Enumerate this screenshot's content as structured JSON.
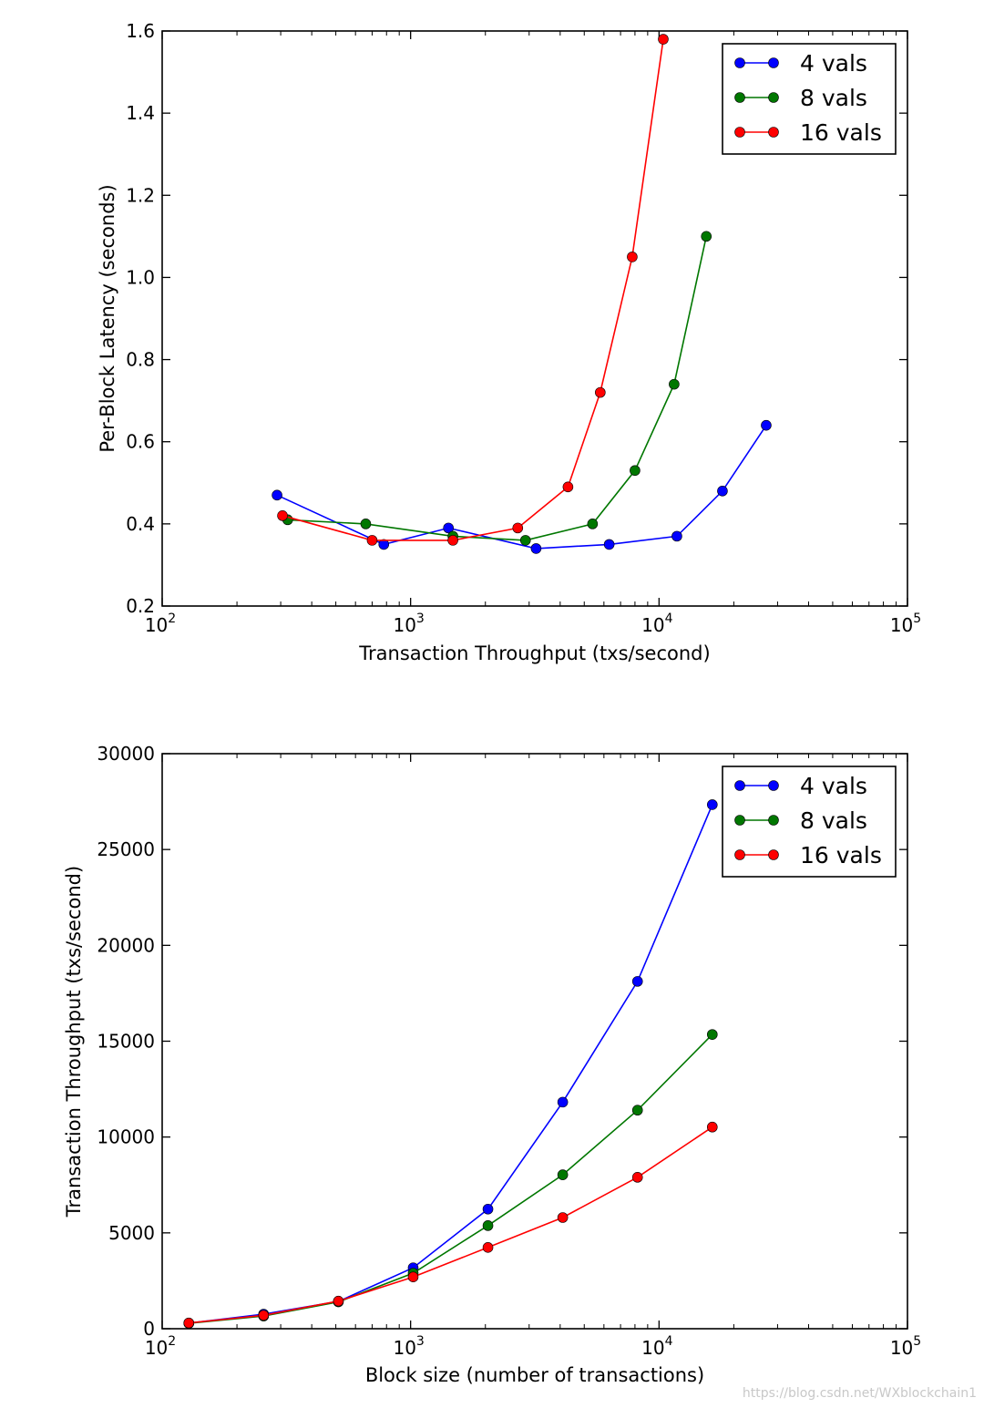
{
  "chart_data": [
    {
      "type": "line",
      "title": "",
      "xlabel": "Transaction Throughput (txs/second)",
      "ylabel": "Per-Block Latency (seconds)",
      "xscale": "log",
      "xlim": [
        100,
        100000
      ],
      "ylim": [
        0.2,
        1.6
      ],
      "xticks": [
        {
          "base": "10",
          "exp": "2"
        },
        {
          "base": "10",
          "exp": "3"
        },
        {
          "base": "10",
          "exp": "4"
        },
        {
          "base": "10",
          "exp": "5"
        }
      ],
      "yticks": [
        "0.2",
        "0.4",
        "0.6",
        "0.8",
        "1.0",
        "1.2",
        "1.4",
        "1.6"
      ],
      "legend_position": "top-right",
      "grid": false,
      "series": [
        {
          "name": "4 vals",
          "color": "#0000ff",
          "points": [
            [
              290,
              0.47
            ],
            [
              780,
              0.35
            ],
            [
              1420,
              0.39
            ],
            [
              3200,
              0.34
            ],
            [
              6300,
              0.35
            ],
            [
              11800,
              0.37
            ],
            [
              18000,
              0.48
            ],
            [
              27000,
              0.64
            ]
          ]
        },
        {
          "name": "8 vals",
          "color": "#007700",
          "points": [
            [
              320,
              0.41
            ],
            [
              660,
              0.4
            ],
            [
              1480,
              0.37
            ],
            [
              2900,
              0.36
            ],
            [
              5400,
              0.4
            ],
            [
              8000,
              0.53
            ],
            [
              11500,
              0.74
            ],
            [
              15500,
              1.1
            ]
          ]
        },
        {
          "name": "16 vals",
          "color": "#ff0000",
          "points": [
            [
              305,
              0.42
            ],
            [
              700,
              0.36
            ],
            [
              1480,
              0.36
            ],
            [
              2700,
              0.39
            ],
            [
              4300,
              0.49
            ],
            [
              5800,
              0.72
            ],
            [
              7800,
              1.05
            ],
            [
              10400,
              1.58
            ]
          ]
        }
      ]
    },
    {
      "type": "line",
      "title": "",
      "xlabel": "Block size (number of transactions)",
      "ylabel": "Transaction Throughput (txs/second)",
      "xscale": "log",
      "xlim": [
        100,
        100000
      ],
      "ylim": [
        0,
        30000
      ],
      "xticks": [
        {
          "base": "10",
          "exp": "2"
        },
        {
          "base": "10",
          "exp": "3"
        },
        {
          "base": "10",
          "exp": "4"
        },
        {
          "base": "10",
          "exp": "5"
        }
      ],
      "yticks": [
        "0",
        "5000",
        "10000",
        "15000",
        "20000",
        "25000",
        "30000"
      ],
      "legend_position": "top-right",
      "grid": false,
      "series": [
        {
          "name": "4 vals",
          "color": "#0000ff",
          "points": [
            [
              128,
              290
            ],
            [
              256,
              760
            ],
            [
              512,
              1420
            ],
            [
              1024,
              3180
            ],
            [
              2048,
              6240
            ],
            [
              4096,
              11820
            ],
            [
              8192,
              18120
            ],
            [
              16384,
              27340
            ]
          ]
        },
        {
          "name": "8 vals",
          "color": "#007700",
          "points": [
            [
              128,
              280
            ],
            [
              256,
              660
            ],
            [
              512,
              1400
            ],
            [
              1024,
              2900
            ],
            [
              2048,
              5380
            ],
            [
              4096,
              8030
            ],
            [
              8192,
              11400
            ],
            [
              16384,
              15350
            ]
          ]
        },
        {
          "name": "16 vals",
          "color": "#ff0000",
          "points": [
            [
              128,
              300
            ],
            [
              256,
              700
            ],
            [
              512,
              1440
            ],
            [
              1024,
              2700
            ],
            [
              2048,
              4240
            ],
            [
              4096,
              5800
            ],
            [
              8192,
              7900
            ],
            [
              16384,
              10520
            ]
          ]
        }
      ]
    }
  ],
  "watermark": "https://blog.csdn.net/WXblockchain1"
}
